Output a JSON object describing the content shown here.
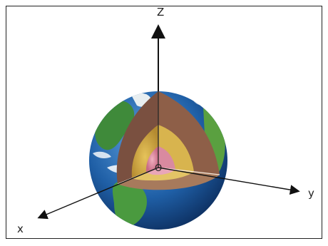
{
  "axes": {
    "z_label": "Z",
    "y_label": "y",
    "x_label": "x",
    "origin_label": "O"
  },
  "colors": {
    "ocean": "#1f5fa6",
    "ocean_light": "#4a8fd0",
    "land": "#3f8a3a",
    "land_light": "#7cbf4a",
    "cloud": "#ffffff",
    "crust": "#6b4a3a",
    "mantle_upper": "#8a5a45",
    "mantle_lower": "#a0704f",
    "outer_core": "#d4b04a",
    "inner_core": "#d98aa0",
    "axis": "#111111"
  },
  "icons": {
    "diagram": "earth-layers-cutaway"
  }
}
